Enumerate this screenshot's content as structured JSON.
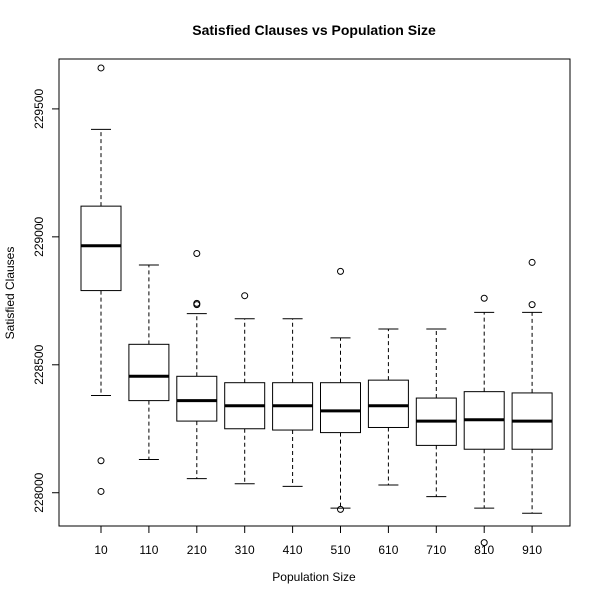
{
  "chart_data": {
    "type": "boxplot",
    "title": "Satisfied Clauses vs Population Size",
    "xlabel": "Population Size",
    "ylabel": "Satisfied Clauses",
    "ylim": [
      227870,
      229695
    ],
    "yticks": [
      228000,
      228500,
      229000,
      229500
    ],
    "categories": [
      "10",
      "110",
      "210",
      "310",
      "410",
      "510",
      "610",
      "710",
      "810",
      "910"
    ],
    "boxes": [
      {
        "category": "10",
        "whisker_low": 228380,
        "q1": 228790,
        "median": 228965,
        "q3": 229120,
        "whisker_high": 229420,
        "outliers": [
          229660,
          228125,
          228005
        ]
      },
      {
        "category": "110",
        "whisker_low": 228130,
        "q1": 228360,
        "median": 228455,
        "q3": 228580,
        "whisker_high": 228890,
        "outliers": []
      },
      {
        "category": "210",
        "whisker_low": 228055,
        "q1": 228280,
        "median": 228360,
        "q3": 228455,
        "whisker_high": 228700,
        "outliers": [
          228935,
          228740,
          228735
        ]
      },
      {
        "category": "310",
        "whisker_low": 228035,
        "q1": 228250,
        "median": 228340,
        "q3": 228430,
        "whisker_high": 228680,
        "outliers": [
          228770
        ]
      },
      {
        "category": "410",
        "whisker_low": 228025,
        "q1": 228245,
        "median": 228340,
        "q3": 228430,
        "whisker_high": 228680,
        "outliers": []
      },
      {
        "category": "510",
        "whisker_low": 227940,
        "q1": 228235,
        "median": 228320,
        "q3": 228430,
        "whisker_high": 228605,
        "outliers": [
          228865,
          227935
        ]
      },
      {
        "category": "610",
        "whisker_low": 228030,
        "q1": 228255,
        "median": 228340,
        "q3": 228440,
        "whisker_high": 228640,
        "outliers": []
      },
      {
        "category": "710",
        "whisker_low": 227985,
        "q1": 228185,
        "median": 228280,
        "q3": 228370,
        "whisker_high": 228640,
        "outliers": []
      },
      {
        "category": "810",
        "whisker_low": 227940,
        "q1": 228170,
        "median": 228285,
        "q3": 228395,
        "whisker_high": 228705,
        "outliers": [
          228760,
          227805
        ]
      },
      {
        "category": "910",
        "whisker_low": 227920,
        "q1": 228170,
        "median": 228280,
        "q3": 228390,
        "whisker_high": 228705,
        "outliers": [
          228900,
          228735
        ]
      }
    ],
    "grid": false,
    "legend": "none"
  }
}
